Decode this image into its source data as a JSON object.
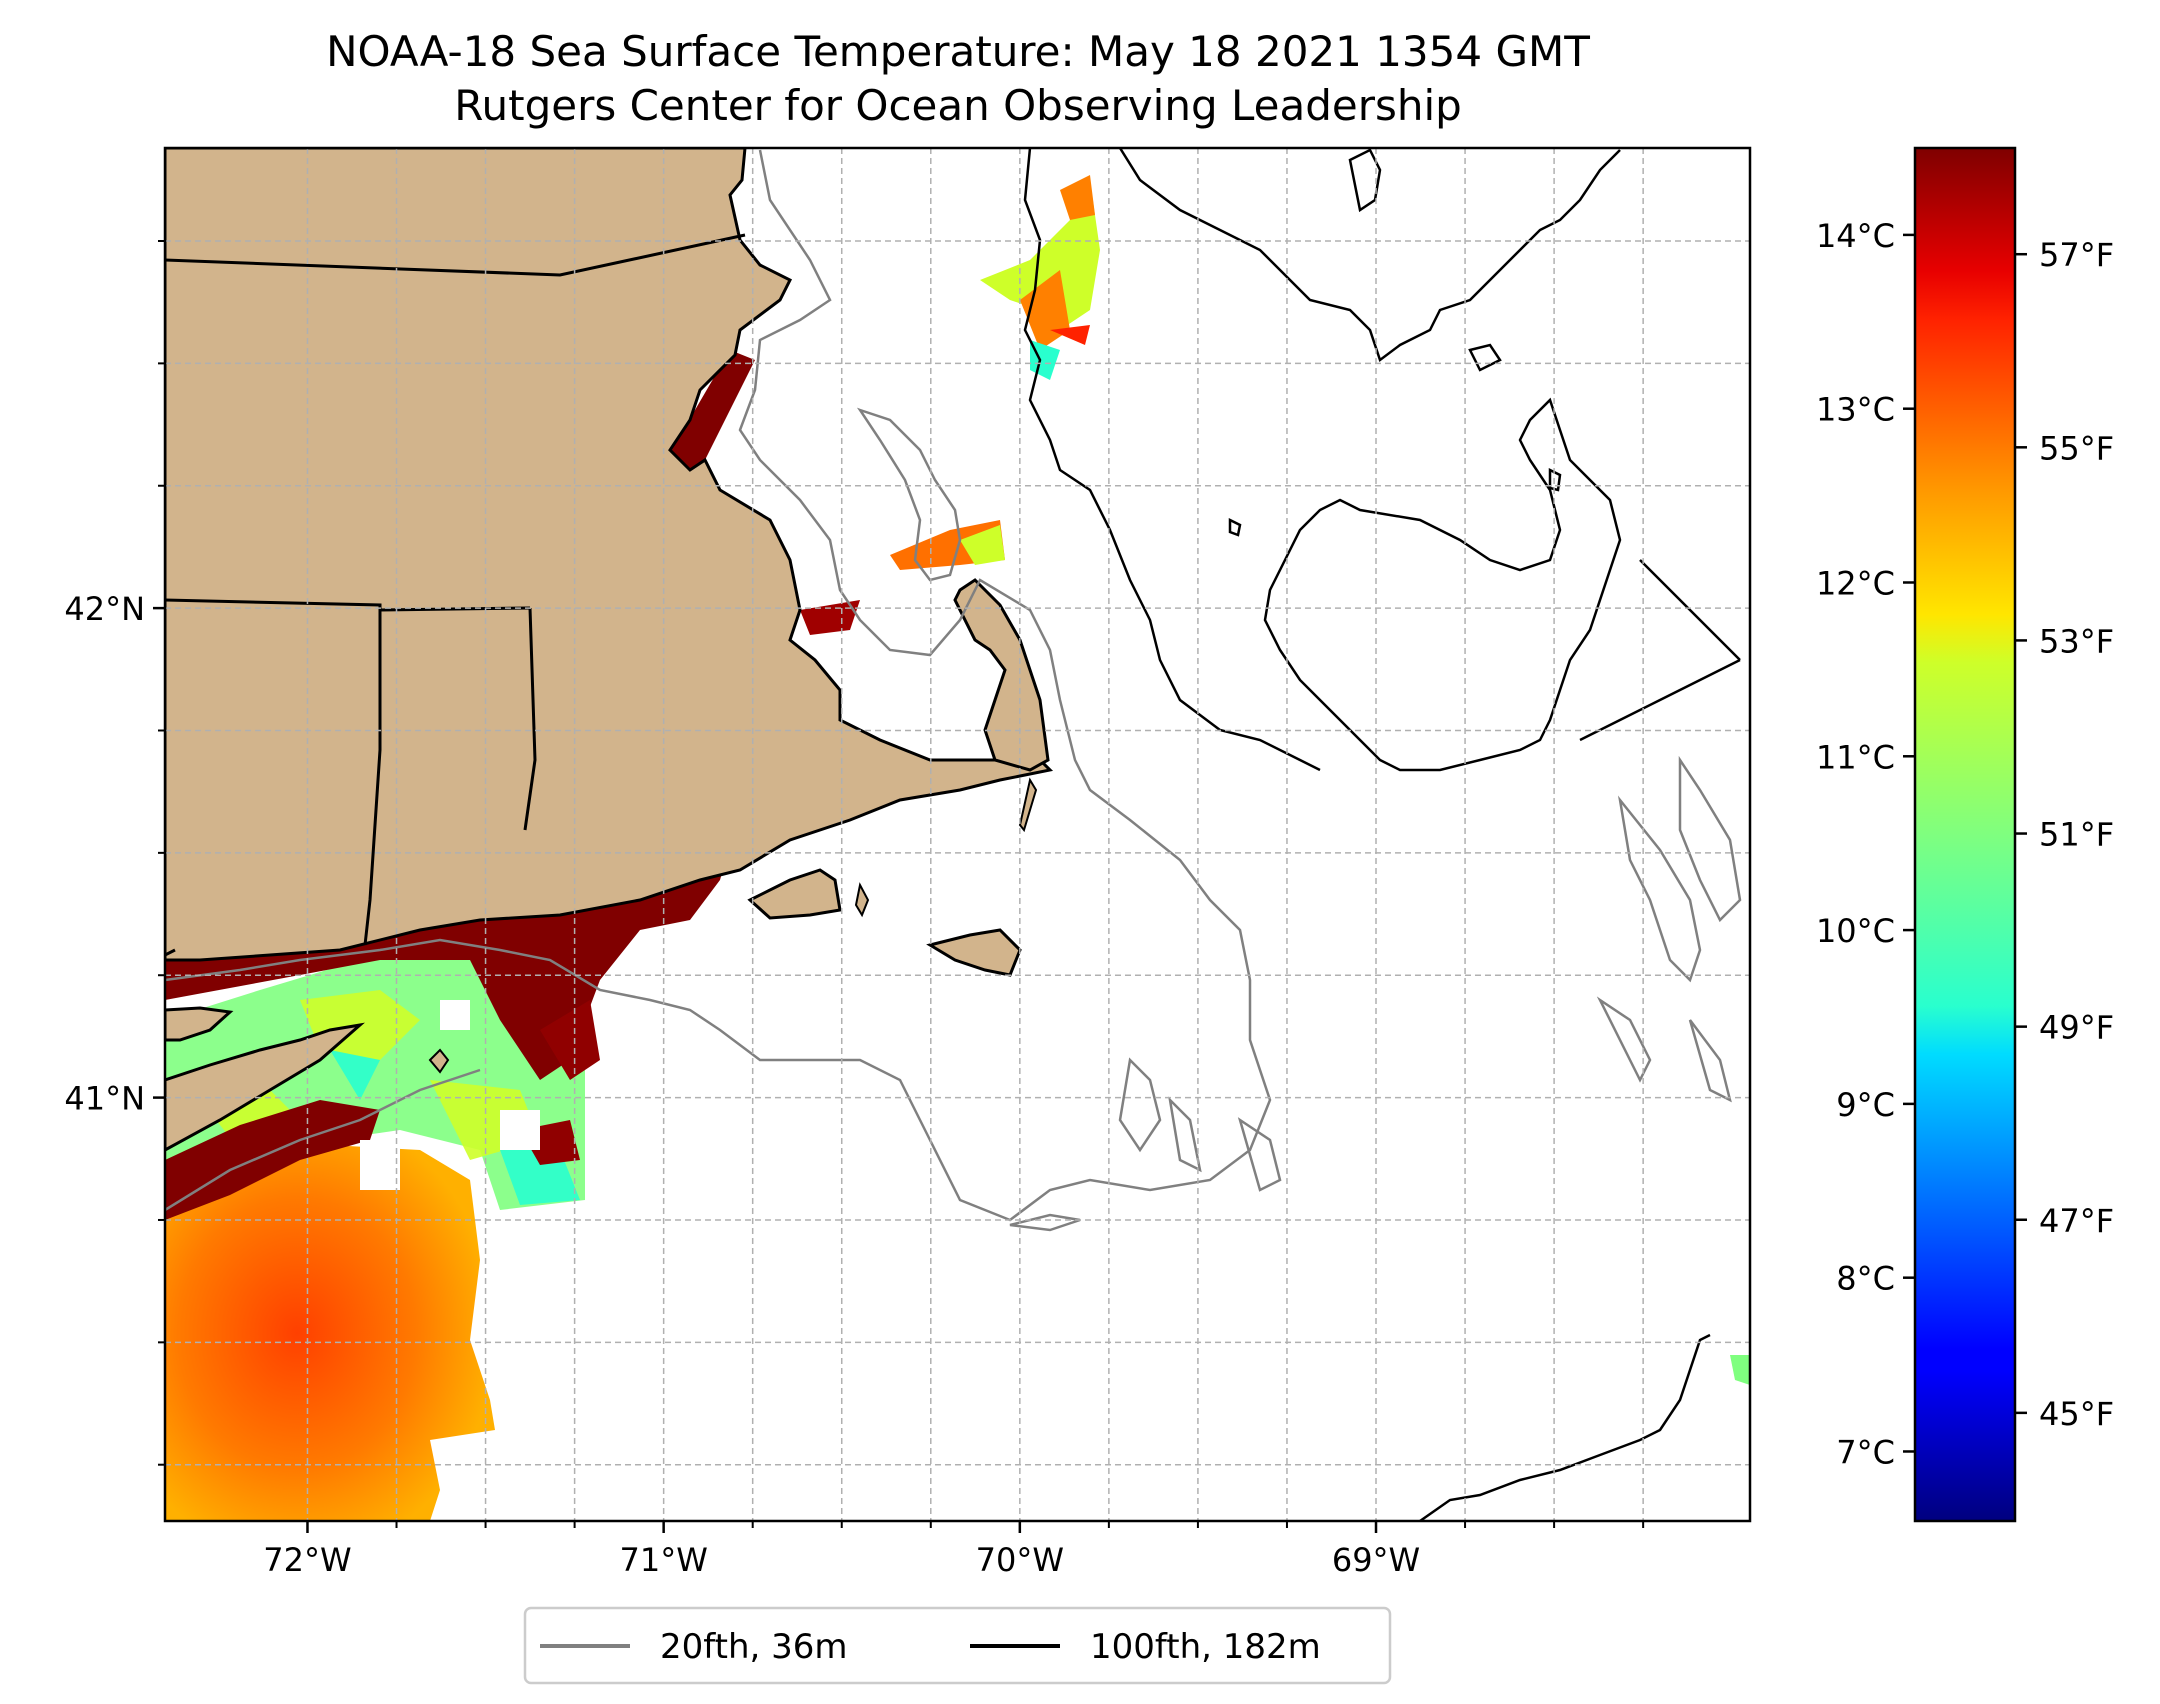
{
  "title": {
    "line1": "NOAA-18 Sea Surface Temperature: May 18 2021 1354 GMT",
    "line2": "Rutgers Center for Ocean Observing Leadership"
  },
  "axes": {
    "lon_range": [
      -72.4,
      -67.95
    ],
    "lat_range": [
      40.135,
      42.94
    ],
    "lon_ticks": [
      {
        "value": -72,
        "label": "72°W"
      },
      {
        "value": -71,
        "label": "71°W"
      },
      {
        "value": -70,
        "label": "70°W"
      },
      {
        "value": -69,
        "label": "69°W"
      }
    ],
    "lat_ticks": [
      {
        "value": 42,
        "label": "42°N"
      },
      {
        "value": 41,
        "label": "41°N"
      }
    ],
    "minor_lon": [
      -71.75,
      -71.5,
      -71.25,
      -70.75,
      -70.5,
      -70.25,
      -69.75,
      -69.5,
      -69.25,
      -68.75,
      -68.5,
      -68.25
    ],
    "minor_lat": [
      40.25,
      40.5,
      40.75,
      41.25,
      41.5,
      41.75,
      42.25,
      42.5,
      42.75
    ],
    "gridlines": true
  },
  "colorbar": {
    "colormap": "jet",
    "range_c": [
      6.6,
      14.5
    ],
    "celsius_ticks": [
      {
        "value": 7,
        "label": "7°C"
      },
      {
        "value": 8,
        "label": "8°C"
      },
      {
        "value": 9,
        "label": "9°C"
      },
      {
        "value": 10,
        "label": "10°C"
      },
      {
        "value": 11,
        "label": "11°C"
      },
      {
        "value": 12,
        "label": "12°C"
      },
      {
        "value": 13,
        "label": "13°C"
      },
      {
        "value": 14,
        "label": "14°C"
      }
    ],
    "fahrenheit_ticks": [
      {
        "value": 45,
        "label": "45°F"
      },
      {
        "value": 47,
        "label": "47°F"
      },
      {
        "value": 49,
        "label": "49°F"
      },
      {
        "value": 51,
        "label": "51°F"
      },
      {
        "value": 53,
        "label": "53°F"
      },
      {
        "value": 55,
        "label": "55°F"
      },
      {
        "value": 57,
        "label": "57°F"
      }
    ]
  },
  "legend": {
    "position": "bottom-center",
    "items": [
      {
        "label": "20fth, 36m",
        "color": "#808080"
      },
      {
        "label": "100fth, 182m",
        "color": "#000000"
      }
    ]
  },
  "colors": {
    "land": "#d2b48c",
    "coastline": "#000000",
    "isobath_20fth": "#808080",
    "isobath_100fth": "#000000",
    "grid": "#b0b0b0"
  }
}
